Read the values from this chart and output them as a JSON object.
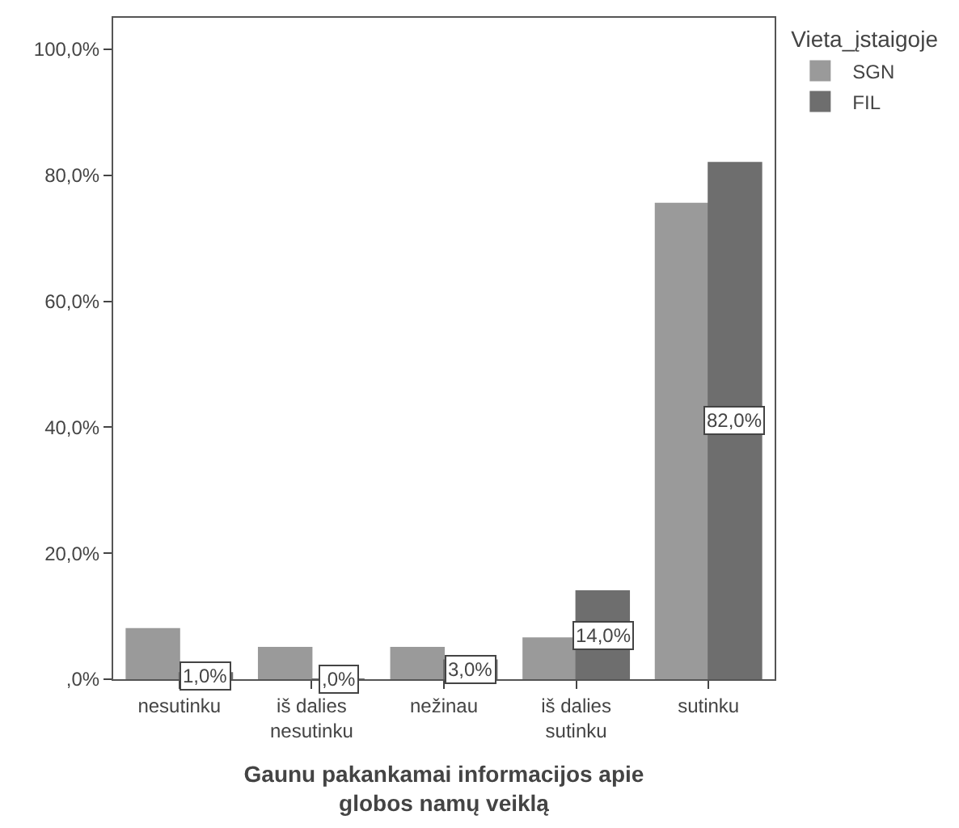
{
  "chart_data": {
    "type": "bar",
    "xlabel": "Gaunu pakankamai informacijos apie\nglobos namų veiklą",
    "legend_title": "Vieta_įstaigoje",
    "categories": [
      "nesutinku",
      "iš dalies\nnesutinku",
      "nežinau",
      "iš dalies\nsutinku",
      "sutinku"
    ],
    "series": [
      {
        "name": "SGN",
        "color": "#9a9a9a",
        "values": [
          8,
          5,
          5,
          6.5,
          75.5
        ]
      },
      {
        "name": "FIL",
        "color": "#6e6e6e",
        "values": [
          1,
          0,
          3,
          14,
          82
        ],
        "value_labels": [
          "1,0%",
          ",0%",
          "3,0%",
          "14,0%",
          "82,0%"
        ]
      }
    ],
    "ylim": [
      0,
      105
    ],
    "yticks": [
      {
        "value": 0,
        "label": ",0%"
      },
      {
        "value": 20,
        "label": "20,0%"
      },
      {
        "value": 40,
        "label": "40,0%"
      },
      {
        "value": 60,
        "label": "60,0%"
      },
      {
        "value": 80,
        "label": "80,0%"
      },
      {
        "value": 100,
        "label": "100,0%"
      }
    ],
    "legend": "top right"
  }
}
